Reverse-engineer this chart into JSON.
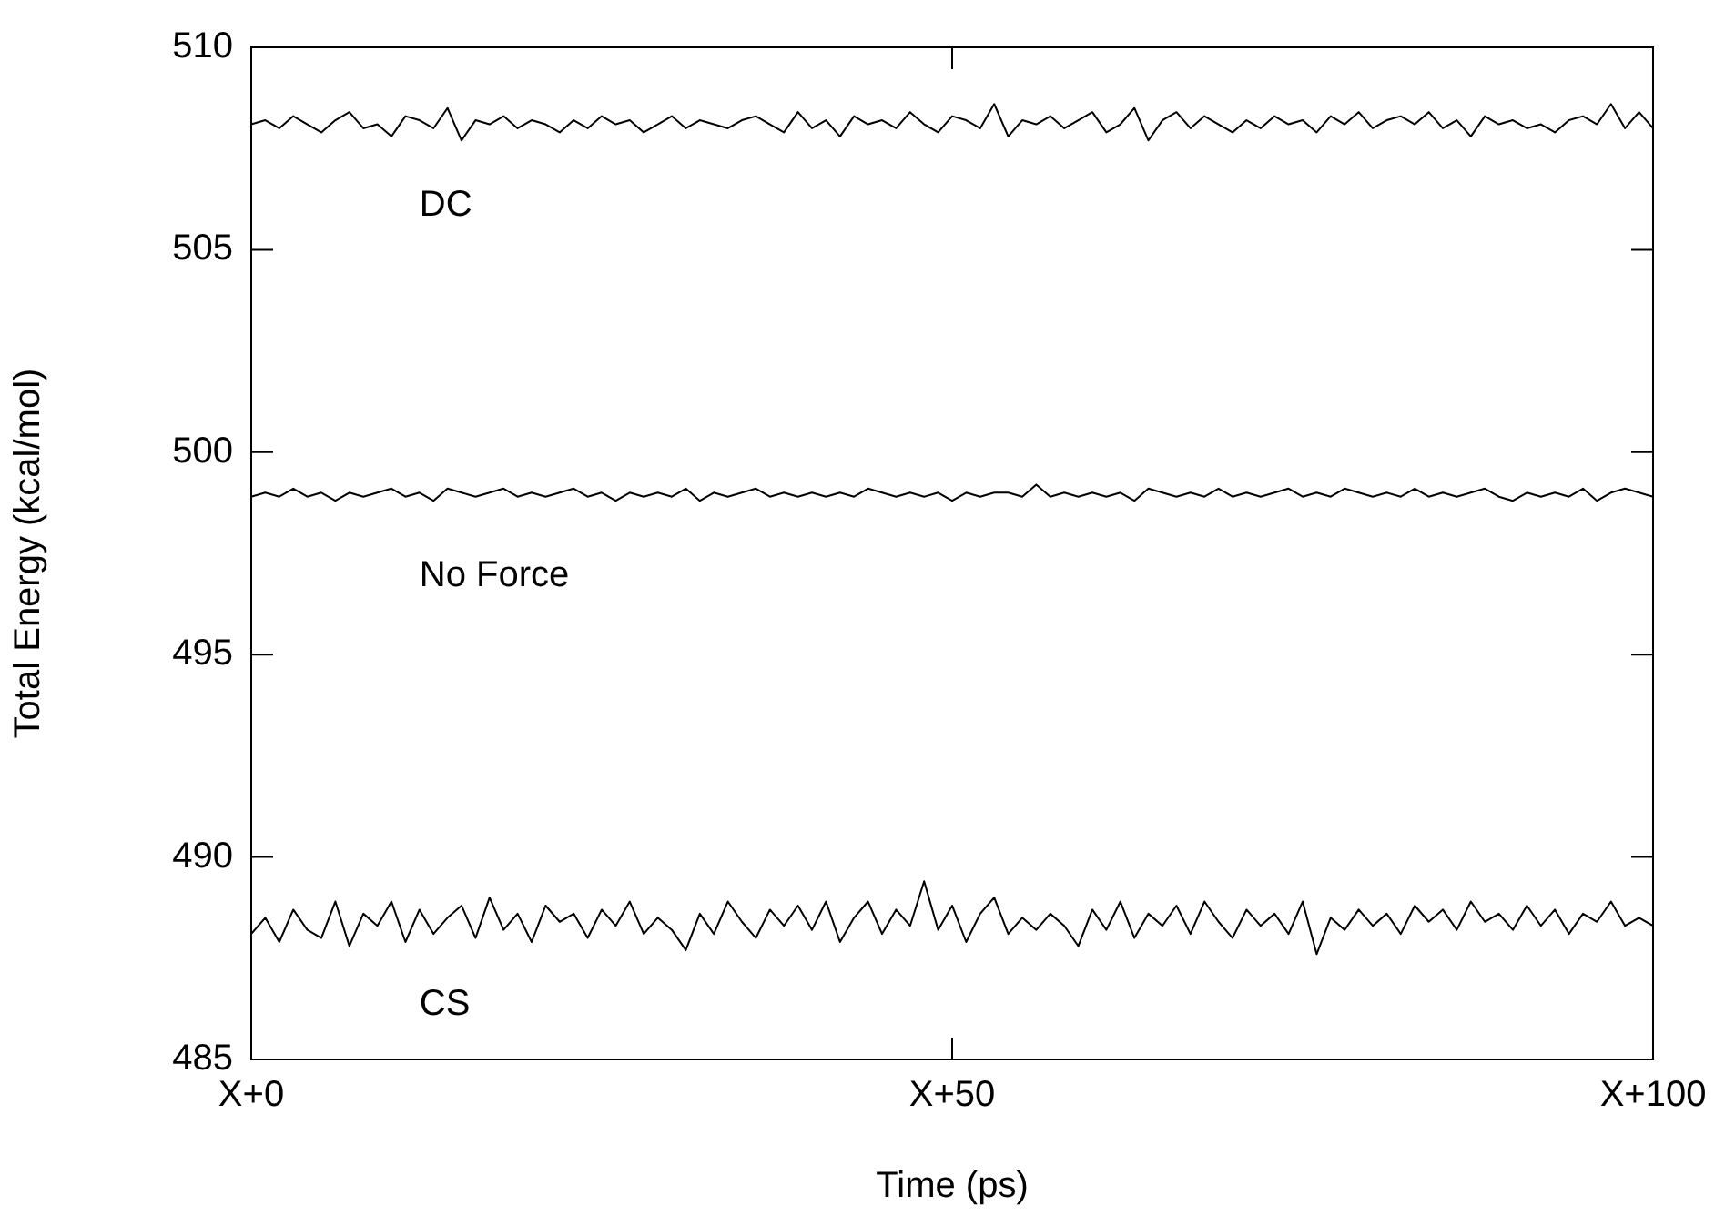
{
  "chart_data": {
    "type": "line",
    "xlabel": "Time (ps)",
    "ylabel": "Total Energy (kcal/mol)",
    "ylim": [
      485,
      510
    ],
    "yticks": [
      485,
      490,
      495,
      500,
      505,
      510
    ],
    "grid": false,
    "legend": false,
    "marker": "none",
    "line_style": "solid",
    "categories": [
      "X+0",
      null,
      null,
      null,
      null,
      null,
      null,
      null,
      null,
      null,
      null,
      null,
      null,
      null,
      null,
      null,
      null,
      null,
      null,
      null,
      null,
      null,
      null,
      null,
      null,
      null,
      null,
      null,
      null,
      null,
      null,
      null,
      null,
      null,
      null,
      null,
      null,
      null,
      null,
      null,
      null,
      null,
      null,
      null,
      null,
      null,
      null,
      null,
      null,
      null,
      "X+50",
      null,
      null,
      null,
      null,
      null,
      null,
      null,
      null,
      null,
      null,
      null,
      null,
      null,
      null,
      null,
      null,
      null,
      null,
      null,
      null,
      null,
      null,
      null,
      null,
      null,
      null,
      null,
      null,
      null,
      null,
      null,
      null,
      null,
      null,
      null,
      null,
      null,
      null,
      null,
      null,
      null,
      null,
      null,
      null,
      null,
      null,
      null,
      null,
      null,
      "X+100"
    ],
    "series": [
      {
        "name": "DC",
        "color": "#000000",
        "values": [
          508.1,
          508.2,
          508.0,
          508.3,
          508.1,
          507.9,
          508.2,
          508.4,
          508.0,
          508.1,
          507.8,
          508.3,
          508.2,
          508.0,
          508.5,
          507.7,
          508.2,
          508.1,
          508.3,
          508.0,
          508.2,
          508.1,
          507.9,
          508.2,
          508.0,
          508.3,
          508.1,
          508.2,
          507.9,
          508.1,
          508.3,
          508.0,
          508.2,
          508.1,
          508.0,
          508.2,
          508.3,
          508.1,
          507.9,
          508.4,
          508.0,
          508.2,
          507.8,
          508.3,
          508.1,
          508.2,
          508.0,
          508.4,
          508.1,
          507.9,
          508.3,
          508.2,
          508.0,
          508.6,
          507.8,
          508.2,
          508.1,
          508.3,
          508.0,
          508.2,
          508.4,
          507.9,
          508.1,
          508.5,
          507.7,
          508.2,
          508.4,
          508.0,
          508.3,
          508.1,
          507.9,
          508.2,
          508.0,
          508.3,
          508.1,
          508.2,
          507.9,
          508.3,
          508.1,
          508.4,
          508.0,
          508.2,
          508.3,
          508.1,
          508.4,
          508.0,
          508.2,
          507.8,
          508.3,
          508.1,
          508.2,
          508.0,
          508.1,
          507.9,
          508.2,
          508.3,
          508.1,
          508.6,
          508.0,
          508.4,
          508.0
        ]
      },
      {
        "name": "No Force",
        "color": "#000000",
        "values": [
          498.9,
          499.0,
          498.9,
          499.1,
          498.9,
          499.0,
          498.8,
          499.0,
          498.9,
          499.0,
          499.1,
          498.9,
          499.0,
          498.8,
          499.1,
          499.0,
          498.9,
          499.0,
          499.1,
          498.9,
          499.0,
          498.9,
          499.0,
          499.1,
          498.9,
          499.0,
          498.8,
          499.0,
          498.9,
          499.0,
          498.9,
          499.1,
          498.8,
          499.0,
          498.9,
          499.0,
          499.1,
          498.9,
          499.0,
          498.9,
          499.0,
          498.9,
          499.0,
          498.9,
          499.1,
          499.0,
          498.9,
          499.0,
          498.9,
          499.0,
          498.8,
          499.0,
          498.9,
          499.0,
          499.0,
          498.9,
          499.2,
          498.9,
          499.0,
          498.9,
          499.0,
          498.9,
          499.0,
          498.8,
          499.1,
          499.0,
          498.9,
          499.0,
          498.9,
          499.1,
          498.9,
          499.0,
          498.9,
          499.0,
          499.1,
          498.9,
          499.0,
          498.9,
          499.1,
          499.0,
          498.9,
          499.0,
          498.9,
          499.1,
          498.9,
          499.0,
          498.9,
          499.0,
          499.1,
          498.9,
          498.8,
          499.0,
          498.9,
          499.0,
          498.9,
          499.1,
          498.8,
          499.0,
          499.1,
          499.0,
          498.9
        ]
      },
      {
        "name": "CS",
        "color": "#000000",
        "values": [
          488.1,
          488.5,
          487.9,
          488.7,
          488.2,
          488.0,
          488.9,
          487.8,
          488.6,
          488.3,
          488.9,
          487.9,
          488.7,
          488.1,
          488.5,
          488.8,
          488.0,
          489.0,
          488.2,
          488.6,
          487.9,
          488.8,
          488.4,
          488.6,
          488.0,
          488.7,
          488.3,
          488.9,
          488.1,
          488.5,
          488.2,
          487.7,
          488.6,
          488.1,
          488.9,
          488.4,
          488.0,
          488.7,
          488.3,
          488.8,
          488.2,
          488.9,
          487.9,
          488.5,
          488.9,
          488.1,
          488.7,
          488.3,
          489.4,
          488.2,
          488.8,
          487.9,
          488.6,
          489.0,
          488.1,
          488.5,
          488.2,
          488.6,
          488.3,
          487.8,
          488.7,
          488.2,
          488.9,
          488.0,
          488.6,
          488.3,
          488.8,
          488.1,
          488.9,
          488.4,
          488.0,
          488.7,
          488.3,
          488.6,
          488.1,
          488.9,
          487.6,
          488.5,
          488.2,
          488.7,
          488.3,
          488.6,
          488.1,
          488.8,
          488.4,
          488.7,
          488.2,
          488.9,
          488.4,
          488.6,
          488.2,
          488.8,
          488.3,
          488.7,
          488.1,
          488.6,
          488.4,
          488.9,
          488.3,
          488.5,
          488.3
        ]
      }
    ]
  }
}
